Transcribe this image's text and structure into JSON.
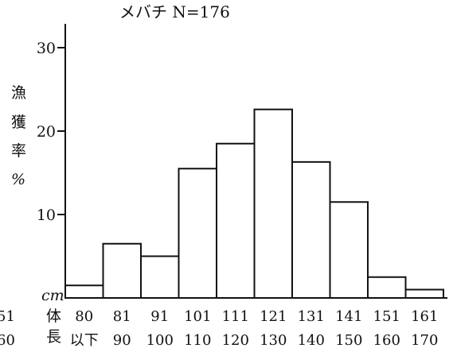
{
  "chart_data": {
    "type": "bar",
    "title": "メバチ N=176",
    "ylabel_chars": [
      "漁",
      "獲",
      "率",
      "%"
    ],
    "x_unit": "cm",
    "xlabel_chars": [
      "体",
      "長"
    ],
    "ylim": [
      0,
      30
    ],
    "yticks": [
      10,
      20,
      30
    ],
    "categories": [
      {
        "top": "80",
        "bottom": "以下"
      },
      {
        "top": "81",
        "bottom": "90"
      },
      {
        "top": "91",
        "bottom": "100"
      },
      {
        "top": "101",
        "bottom": "110"
      },
      {
        "top": "111",
        "bottom": "120"
      },
      {
        "top": "121",
        "bottom": "130"
      },
      {
        "top": "131",
        "bottom": "140"
      },
      {
        "top": "141",
        "bottom": "150"
      },
      {
        "top": "151",
        "bottom": "160"
      },
      {
        "top": "161",
        "bottom": "170"
      }
    ],
    "values": [
      1.5,
      6.5,
      5.0,
      15.5,
      18.5,
      22.6,
      16.3,
      11.5,
      2.5,
      1.0
    ],
    "left_cut_labels": [
      "51",
      "60"
    ]
  }
}
